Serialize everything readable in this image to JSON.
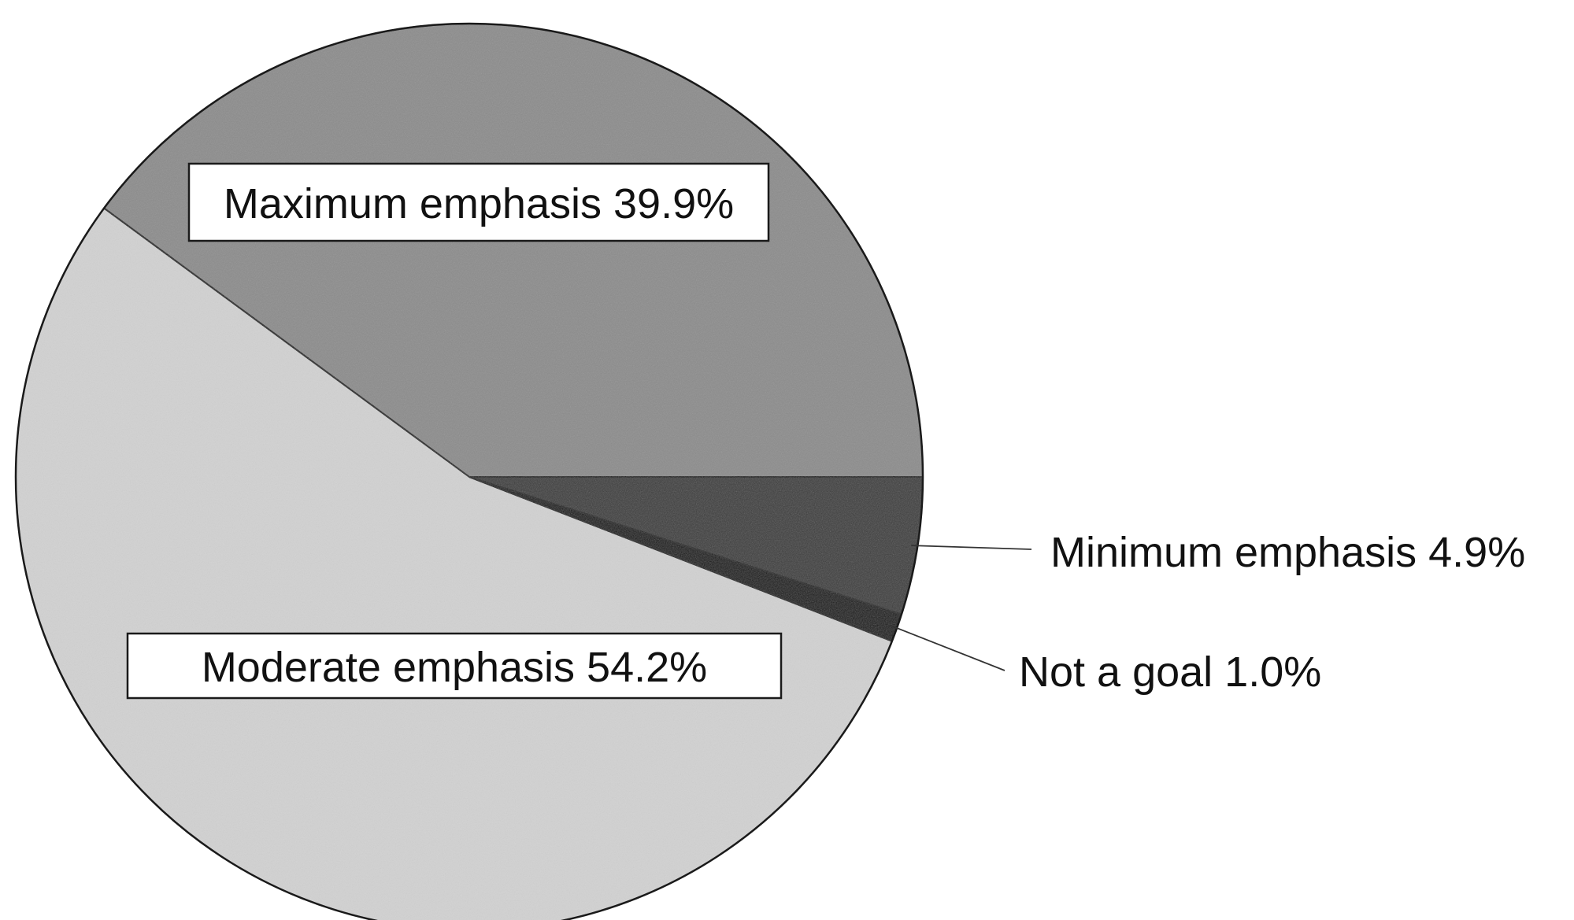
{
  "chart_data": {
    "type": "pie",
    "title": "",
    "slices": [
      {
        "label": "Maximum emphasis",
        "value": 39.9,
        "text": "Maximum emphasis 39.9%",
        "color": "#8c8c8c"
      },
      {
        "label": "Minimum emphasis",
        "value": 4.9,
        "text": "Minimum emphasis 4.9%",
        "color": "#3a3a3a"
      },
      {
        "label": "Not a goal",
        "value": 1.0,
        "text": "Not a goal 1.0%",
        "color": "#0d0d0d"
      },
      {
        "label": "Moderate emphasis",
        "value": 54.2,
        "text": "Moderate emphasis 54.2%",
        "color": "#d2d2d2"
      }
    ]
  }
}
